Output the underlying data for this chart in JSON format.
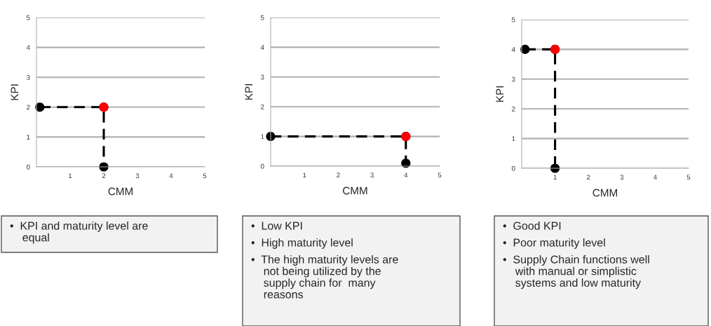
{
  "chart_data": [
    {
      "type": "scatter",
      "marker": "circle",
      "xlabel": "CMM",
      "ylabel": "KPI",
      "xlim": [
        0,
        5
      ],
      "ylim": [
        0,
        5
      ],
      "xticks": [
        1,
        2,
        3,
        4,
        5
      ],
      "yticks": [
        0,
        1,
        2,
        3,
        4,
        5
      ],
      "grid": "y",
      "series": [
        {
          "type": "line",
          "color": "#000000",
          "line_style": "dashed",
          "x": [
            0.1,
            2,
            2
          ],
          "values": [
            2,
            2,
            0
          ]
        },
        {
          "color": "#ff0000",
          "x": [
            2
          ],
          "values": [
            2
          ]
        }
      ],
      "annotations": [
        "•  KPI and maturity level are\n    equal"
      ]
    },
    {
      "type": "scatter",
      "marker": "circle",
      "xlabel": "CMM",
      "ylabel": "KPI",
      "xlim": [
        0,
        5
      ],
      "ylim": [
        0,
        5
      ],
      "xticks": [
        1,
        2,
        3,
        4,
        5
      ],
      "yticks": [
        0,
        1,
        2,
        3,
        4,
        5
      ],
      "grid": "y",
      "series": [
        {
          "type": "line",
          "color": "#000000",
          "line_style": "dashed",
          "x": [
            0,
            4,
            4
          ],
          "values": [
            1,
            1,
            0.1
          ]
        },
        {
          "color": "#ff0000",
          "x": [
            4
          ],
          "values": [
            1
          ]
        }
      ],
      "annotations": [
        "•  Low KPI",
        "•  High maturity level",
        "•  The high maturity levels are\n    not being utilized by the\n    supply chain for  many\n    reasons"
      ]
    },
    {
      "type": "scatter",
      "marker": "circle",
      "xlabel": "CMM",
      "ylabel": "KPI",
      "xlim": [
        0,
        5
      ],
      "ylim": [
        0,
        5
      ],
      "xticks": [
        1,
        2,
        3,
        4,
        5
      ],
      "yticks": [
        0,
        1,
        2,
        3,
        4,
        5
      ],
      "grid": "y",
      "series": [
        {
          "type": "line",
          "color": "#000000",
          "line_style": "dashed",
          "x": [
            0.1,
            1,
            1
          ],
          "values": [
            4,
            4,
            0
          ]
        },
        {
          "color": "#ff0000",
          "x": [
            1
          ],
          "values": [
            4
          ]
        }
      ],
      "annotations": [
        "•  Good KPI",
        "•  Poor maturity level",
        "•  Supply Chain functions well\n    with manual or simplistic\n    systems and low maturity"
      ]
    }
  ]
}
